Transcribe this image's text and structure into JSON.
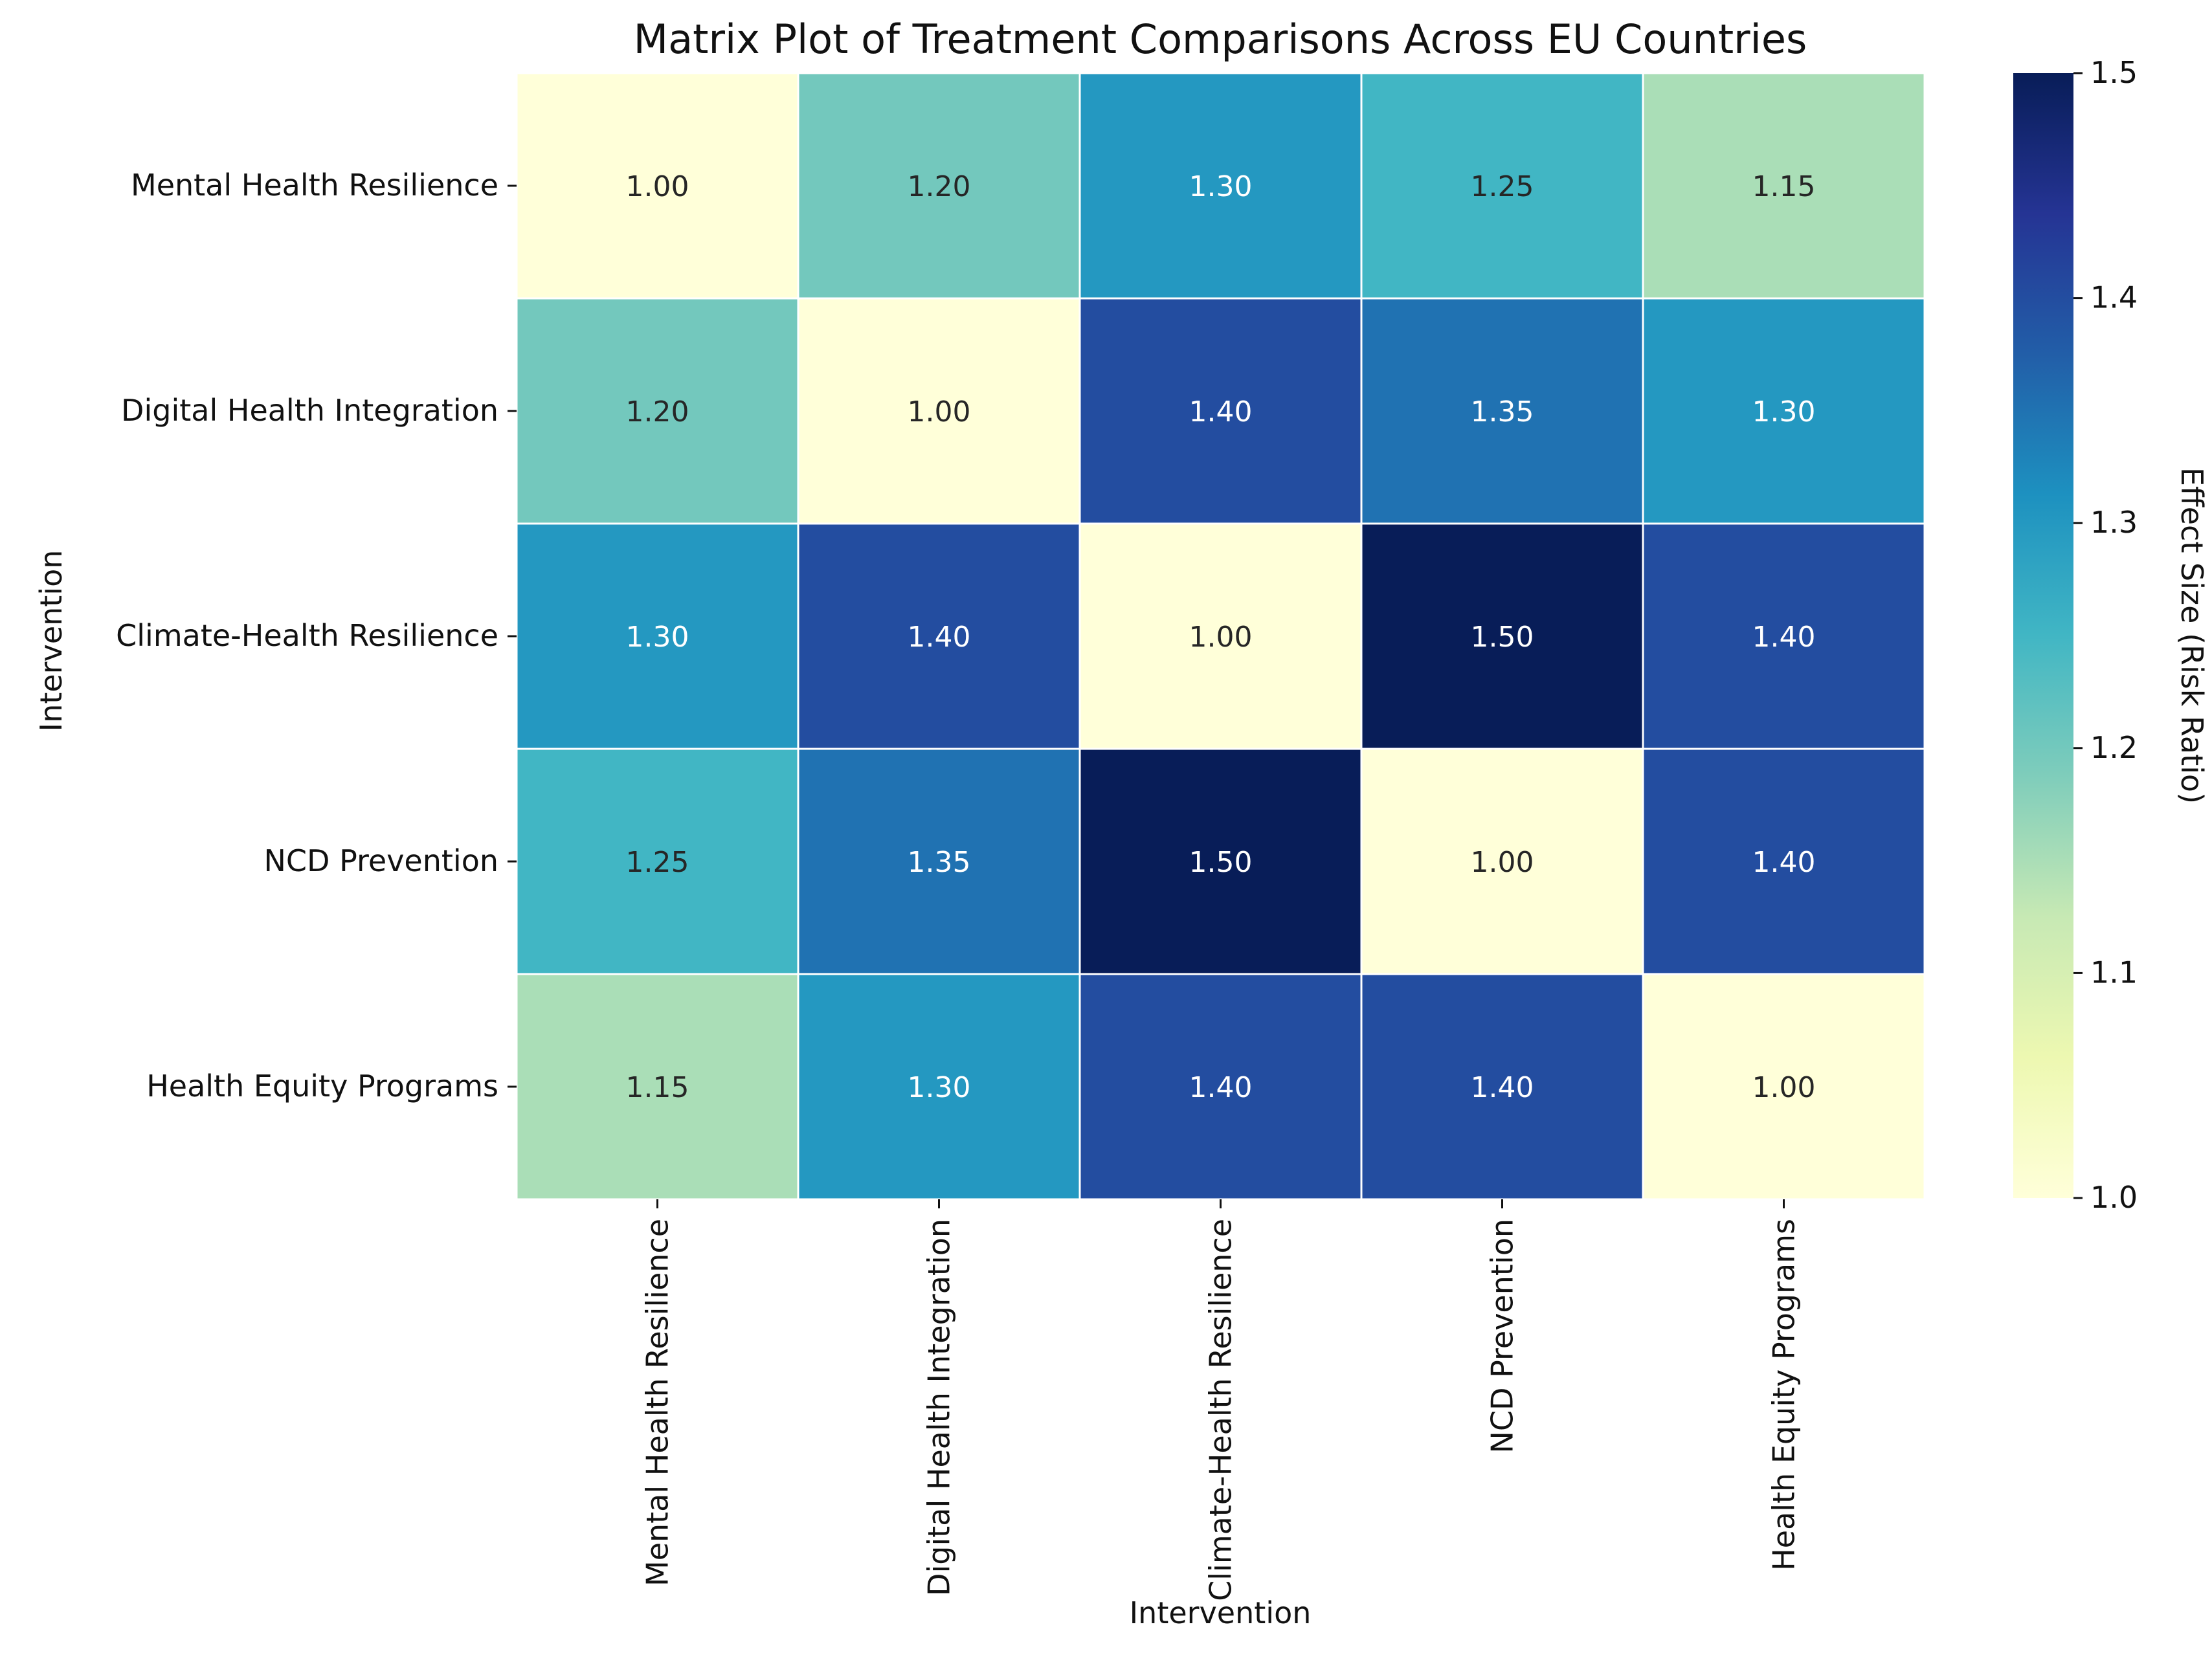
{
  "chart_data": {
    "type": "heatmap",
    "title": "Matrix Plot of Treatment Comparisons Across EU Countries",
    "xlabel": "Intervention",
    "ylabel": "Intervention",
    "rows": [
      "Mental Health Resilience",
      "Digital Health Integration",
      "Climate-Health Resilience",
      "NCD Prevention",
      "Health Equity Programs"
    ],
    "columns": [
      "Mental Health Resilience",
      "Digital Health Integration",
      "Climate-Health Resilience",
      "NCD Prevention",
      "Health Equity Programs"
    ],
    "values": [
      [
        1.0,
        1.2,
        1.3,
        1.25,
        1.15
      ],
      [
        1.2,
        1.0,
        1.4,
        1.35,
        1.3
      ],
      [
        1.3,
        1.4,
        1.0,
        1.5,
        1.4
      ],
      [
        1.25,
        1.35,
        1.5,
        1.0,
        1.4
      ],
      [
        1.15,
        1.3,
        1.4,
        1.4,
        1.0
      ]
    ],
    "value_format": "2 decimals",
    "colormap": "YlGnBu",
    "colormap_stops": [
      "#ffffd9",
      "#edf8b1",
      "#c7e9b4",
      "#7fcdbb",
      "#41b6c4",
      "#1d91c0",
      "#225ea8",
      "#253494",
      "#081d58"
    ],
    "colorbar": {
      "label": "Effect Size (Risk Ratio)",
      "range": [
        1.0,
        1.5
      ],
      "ticks": [
        "1.0",
        "1.1",
        "1.2",
        "1.3",
        "1.4",
        "1.5"
      ]
    }
  }
}
